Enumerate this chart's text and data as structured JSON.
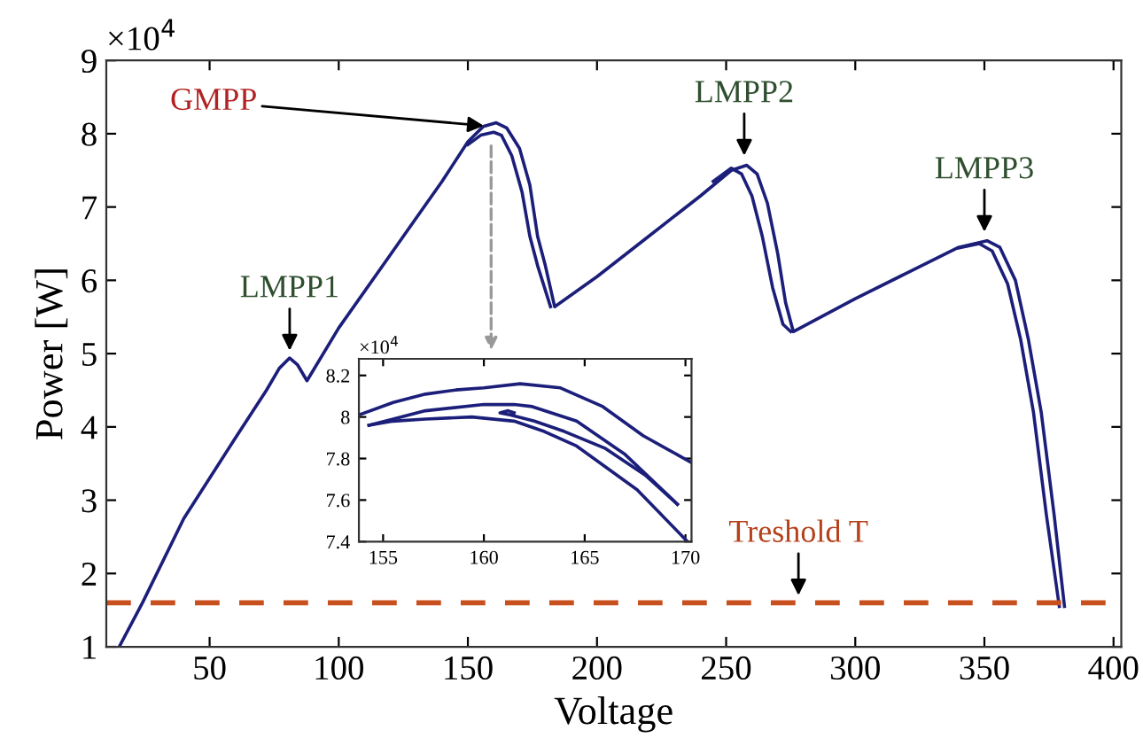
{
  "chart_data": [
    {
      "type": "line",
      "xlabel": "Voltage",
      "ylabel": "Power [W]",
      "xlim": [
        10,
        403
      ],
      "ylim": [
        1,
        9
      ],
      "xticks": [
        50,
        100,
        150,
        200,
        250,
        300,
        350,
        400
      ],
      "yticks": [
        1,
        2,
        3,
        4,
        5,
        6,
        7,
        8,
        9
      ],
      "grid": false,
      "legend": false,
      "line_style": "solid",
      "marker": "none",
      "series": [
        {
          "color": "#1c1f7a",
          "x": [
            15,
            24,
            40,
            60,
            72,
            77,
            81,
            84,
            87.7,
            100,
            120,
            140,
            150,
            156,
            161,
            165,
            170,
            174,
            177,
            180,
            183.6,
            200,
            220,
            240,
            252,
            258,
            262,
            266,
            270,
            273,
            276,
            300,
            320,
            340,
            351,
            356,
            362,
            367,
            372,
            377,
            381
          ],
          "values": [
            1.0,
            1.6,
            2.75,
            3.85,
            4.5,
            4.8,
            4.94,
            4.85,
            4.63,
            5.35,
            6.35,
            7.35,
            7.89,
            8.1,
            8.15,
            8.08,
            7.8,
            7.3,
            6.6,
            6.2,
            5.64,
            6.05,
            6.6,
            7.15,
            7.5,
            7.57,
            7.45,
            7.05,
            6.36,
            5.7,
            5.3,
            5.75,
            6.1,
            6.45,
            6.54,
            6.45,
            6.0,
            5.2,
            4.2,
            2.8,
            1.55
          ]
        },
        {
          "color": "#1c1f7a",
          "x": [
            150,
            155,
            160,
            163,
            167,
            171,
            174,
            177,
            182,
            200,
            245,
            252,
            256,
            260,
            264,
            268,
            272,
            275,
            300,
            340,
            348,
            353,
            359,
            364,
            369,
            374,
            379
          ],
          "values": [
            7.85,
            7.98,
            8.02,
            7.98,
            7.7,
            7.2,
            6.6,
            6.2,
            5.64,
            null,
            7.35,
            7.53,
            7.45,
            7.15,
            6.6,
            5.9,
            5.4,
            5.3,
            null,
            6.44,
            6.5,
            6.4,
            5.95,
            5.2,
            4.2,
            2.8,
            1.55
          ]
        }
      ],
      "ref_lines": [
        {
          "axis": "y",
          "value": 1.6,
          "color": "#c8501e",
          "line_style": "dashed"
        }
      ],
      "annotations": [
        "×10$^{4}$",
        {
          "text": "GMPP",
          "x": 159,
          "y": 8.1
        },
        {
          "text": "LMPP1",
          "x": 81,
          "y": 4.94
        },
        {
          "text": "LMPP2",
          "x": 257,
          "y": 7.6
        },
        {
          "text": "LMPP3",
          "x": 350,
          "y": 6.56
        },
        {
          "text": "Treshold T",
          "x": 278,
          "y": 1.6
        }
      ]
    },
    {
      "type": "line",
      "xlim": [
        153.8,
        170.3
      ],
      "ylim": [
        7.4,
        8.28
      ],
      "xticks": [
        155,
        160,
        165,
        170
      ],
      "yticks": [
        7.4,
        7.6,
        7.8,
        8,
        8.2
      ],
      "grid": false,
      "legend": false,
      "line_style": "solid",
      "marker": "none",
      "series": [
        {
          "color": "#1c1f7a",
          "x": [
            153.8,
            155.5,
            157.1,
            158.6,
            160,
            161.8,
            163.8,
            165.9,
            167.9,
            170.3
          ],
          "values": [
            8.01,
            8.07,
            8.11,
            8.13,
            8.14,
            8.16,
            8.14,
            8.05,
            7.91,
            7.78
          ]
        },
        {
          "color": "#1c1f7a",
          "x": [
            154.3,
            155.5,
            157.1,
            160,
            161.5,
            162.4,
            164.6,
            167,
            169.6
          ],
          "values": [
            7.96,
            7.99,
            8.03,
            8.06,
            8.06,
            8.05,
            7.98,
            7.82,
            7.58
          ]
        },
        {
          "color": "#1c1f7a",
          "x": [
            169.6,
            168,
            166,
            164,
            162.5,
            161.3,
            160.8,
            161.2,
            161.5
          ],
          "values": [
            7.58,
            7.72,
            7.85,
            7.93,
            7.98,
            8.01,
            8.02,
            8.03,
            8.02
          ]
        },
        {
          "color": "#1c1f7a",
          "x": [
            154.3,
            155.5,
            157.1,
            159.4,
            161.5,
            163,
            164.6,
            167.6,
            170.1
          ],
          "values": [
            7.96,
            7.98,
            7.99,
            8.0,
            7.98,
            7.93,
            7.86,
            7.65,
            7.4
          ]
        }
      ],
      "annotations": [
        "×10$^{4}$"
      ]
    }
  ]
}
